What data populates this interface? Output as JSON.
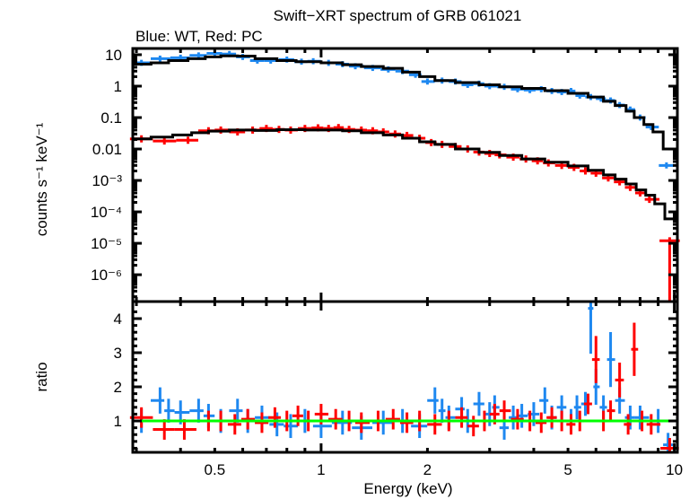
{
  "chart_data": [
    {
      "type": "scatter",
      "panel": "spectrum",
      "title": "Swift−XRT spectrum of GRB 061021",
      "subtitle": "Blue: WT, Red: PC",
      "xlabel": "Energy (keV)",
      "ylabel": "counts s⁻¹ keV⁻¹",
      "xscale": "log",
      "yscale": "log",
      "xlim": [
        0.293,
        10.2
      ],
      "ylim": [
        1.4e-07,
        15.8
      ],
      "ytick_labels": [
        "10",
        "1",
        "0.1",
        "0.01",
        "10⁻³",
        "10⁻⁴",
        "10⁻⁵",
        "10⁻⁶"
      ],
      "ytick_values": [
        10,
        1,
        0.1,
        0.01,
        0.001,
        0.0001,
        1e-05,
        1e-06
      ],
      "colors": {
        "WT": "#1e88f0",
        "PC": "#ff0000",
        "model": "#000000"
      },
      "series": [
        {
          "name": "WT",
          "x": [
            0.31,
            0.35,
            0.4,
            0.45,
            0.5,
            0.55,
            0.6,
            0.66,
            0.72,
            0.8,
            0.88,
            0.95,
            1.05,
            1.15,
            1.25,
            1.4,
            1.55,
            1.7,
            1.85,
            2.0,
            2.2,
            2.4,
            2.6,
            2.8,
            3.0,
            3.3,
            3.6,
            3.9,
            4.2,
            4.5,
            4.8,
            5.1,
            5.4,
            5.8,
            6.2,
            6.6,
            7.0,
            7.5,
            8.0,
            8.6,
            9.5
          ],
          "y": [
            5.5,
            7.5,
            8.0,
            9.5,
            11.0,
            10.5,
            8.5,
            6.5,
            6.5,
            7.0,
            6.0,
            6.2,
            5.5,
            5.0,
            4.3,
            3.8,
            3.4,
            3.0,
            2.3,
            1.4,
            1.5,
            1.4,
            1.1,
            1.2,
            1.0,
            0.95,
            0.8,
            0.75,
            0.8,
            0.7,
            0.65,
            0.7,
            0.5,
            0.45,
            0.4,
            0.35,
            0.25,
            0.18,
            0.1,
            0.05,
            0.003
          ],
          "yerr_rel": 0.25
        },
        {
          "name": "PC",
          "x": [
            0.31,
            0.36,
            0.42,
            0.48,
            0.52,
            0.58,
            0.64,
            0.7,
            0.76,
            0.82,
            0.9,
            0.98,
            1.05,
            1.12,
            1.2,
            1.3,
            1.4,
            1.5,
            1.62,
            1.75,
            1.9,
            2.05,
            2.2,
            2.4,
            2.6,
            2.8,
            3.0,
            3.2,
            3.5,
            3.8,
            4.1,
            4.4,
            4.8,
            5.2,
            5.6,
            6.0,
            6.5,
            7.0,
            7.5,
            8.0,
            8.5,
            9.7
          ],
          "y": [
            0.021,
            0.018,
            0.019,
            0.038,
            0.04,
            0.035,
            0.04,
            0.045,
            0.042,
            0.04,
            0.045,
            0.047,
            0.045,
            0.048,
            0.042,
            0.04,
            0.038,
            0.035,
            0.03,
            0.027,
            0.022,
            0.016,
            0.014,
            0.012,
            0.01,
            0.008,
            0.0072,
            0.0065,
            0.0055,
            0.0048,
            0.0042,
            0.0036,
            0.003,
            0.0026,
            0.002,
            0.0017,
            0.0012,
            0.0009,
            0.0006,
            0.0004,
            0.00025,
            1.2e-05
          ],
          "yerr_rel": 0.3
        }
      ],
      "model": [
        {
          "name": "WT model",
          "x": [
            0.293,
            0.33,
            0.37,
            0.42,
            0.47,
            0.52,
            0.58,
            0.65,
            0.75,
            0.85,
            1.0,
            1.15,
            1.3,
            1.5,
            1.7,
            1.9,
            2.1,
            2.4,
            2.8,
            3.2,
            3.7,
            4.3,
            5.0,
            5.7,
            6.3,
            6.8,
            7.3,
            7.7,
            8.2,
            8.7,
            9.3,
            10.2
          ],
          "y": [
            5.0,
            5.5,
            6.5,
            7.5,
            8.5,
            9.2,
            9.0,
            7.5,
            6.5,
            6.0,
            5.5,
            4.8,
            4.2,
            3.7,
            2.8,
            2.0,
            1.5,
            1.3,
            1.1,
            0.95,
            0.85,
            0.72,
            0.59,
            0.45,
            0.33,
            0.24,
            0.16,
            0.1,
            0.06,
            0.035,
            0.01,
            6e-05
          ]
        },
        {
          "name": "PC model",
          "x": [
            0.293,
            0.33,
            0.38,
            0.43,
            0.48,
            0.55,
            0.65,
            0.75,
            0.9,
            1.0,
            1.15,
            1.3,
            1.5,
            1.7,
            1.9,
            2.1,
            2.4,
            2.8,
            3.2,
            3.7,
            4.3,
            5.0,
            5.7,
            6.3,
            6.8,
            7.3,
            7.8,
            8.3,
            8.8,
            9.4,
            10.2
          ],
          "y": [
            0.021,
            0.024,
            0.028,
            0.033,
            0.037,
            0.04,
            0.039,
            0.041,
            0.04,
            0.04,
            0.038,
            0.033,
            0.028,
            0.022,
            0.017,
            0.014,
            0.01,
            0.0078,
            0.0062,
            0.0048,
            0.0038,
            0.0029,
            0.0021,
            0.0015,
            0.0011,
            0.00077,
            0.0005,
            0.00034,
            0.00018,
            6e-05,
            6e-05
          ]
        }
      ]
    },
    {
      "type": "scatter",
      "panel": "ratio",
      "xlabel": "Energy (keV)",
      "ylabel": "ratio",
      "xscale": "log",
      "xlim": [
        0.293,
        10.2
      ],
      "ylim": [
        0.08,
        4.5
      ],
      "xtick_labels": [
        "0.5",
        "1",
        "2",
        "5",
        "10"
      ],
      "xtick_values": [
        0.5,
        1,
        2,
        5,
        10
      ],
      "ytick_labels": [
        "1",
        "2",
        "3",
        "4"
      ],
      "ytick_values": [
        1,
        2,
        3,
        4
      ],
      "reference_line": {
        "y": 1,
        "color": "#00ff00"
      },
      "series": [
        {
          "name": "WT",
          "x": [
            0.31,
            0.35,
            0.37,
            0.4,
            0.45,
            0.48,
            0.52,
            0.58,
            0.62,
            0.68,
            0.75,
            0.82,
            0.9,
            1.0,
            1.15,
            1.3,
            1.5,
            1.7,
            1.9,
            2.1,
            2.2,
            2.3,
            2.5,
            2.6,
            2.8,
            3.0,
            3.1,
            3.3,
            3.5,
            3.7,
            4.0,
            4.3,
            4.5,
            4.8,
            5.1,
            5.3,
            5.6,
            5.8,
            6.0,
            6.3,
            6.6,
            7.0,
            7.5,
            8.0,
            9.0,
            9.6
          ],
          "y": [
            1.0,
            1.6,
            1.3,
            1.25,
            1.3,
            1.15,
            1.0,
            1.3,
            1.0,
            1.1,
            0.9,
            0.85,
            1.0,
            0.85,
            0.95,
            0.8,
            0.95,
            1.0,
            0.85,
            1.6,
            1.3,
            1.1,
            1.35,
            1.0,
            1.5,
            1.2,
            1.4,
            0.8,
            1.1,
            1.15,
            1.2,
            1.6,
            1.1,
            1.4,
            1.0,
            1.4,
            1.5,
            4.3,
            2.0,
            1.4,
            2.8,
            1.6,
            1.1,
            1.1,
            1.0,
            0.3
          ],
          "yerr": 0.35
        },
        {
          "name": "PC",
          "x": [
            0.31,
            0.36,
            0.41,
            0.48,
            0.52,
            0.57,
            0.62,
            0.68,
            0.74,
            0.8,
            0.86,
            0.92,
            1.0,
            1.1,
            1.2,
            1.3,
            1.45,
            1.6,
            1.75,
            1.9,
            2.1,
            2.3,
            2.5,
            2.7,
            2.9,
            3.1,
            3.3,
            3.6,
            3.9,
            4.2,
            4.5,
            4.8,
            5.1,
            5.4,
            5.7,
            6.0,
            6.3,
            6.6,
            7.0,
            7.4,
            7.7,
            8.1,
            8.6,
            9.7
          ],
          "y": [
            1.1,
            0.75,
            0.75,
            1.0,
            1.0,
            0.9,
            1.05,
            0.95,
            1.1,
            1.0,
            1.15,
            1.0,
            1.2,
            1.05,
            1.0,
            0.95,
            1.0,
            1.05,
            0.95,
            1.0,
            0.9,
            1.0,
            1.1,
            0.85,
            1.0,
            1.2,
            1.3,
            1.05,
            1.0,
            0.95,
            1.1,
            1.0,
            0.9,
            1.0,
            1.5,
            2.8,
            1.0,
            1.3,
            2.2,
            0.9,
            3.1,
            1.0,
            0.9,
            0.2
          ],
          "yerr": 0.3
        }
      ]
    }
  ]
}
